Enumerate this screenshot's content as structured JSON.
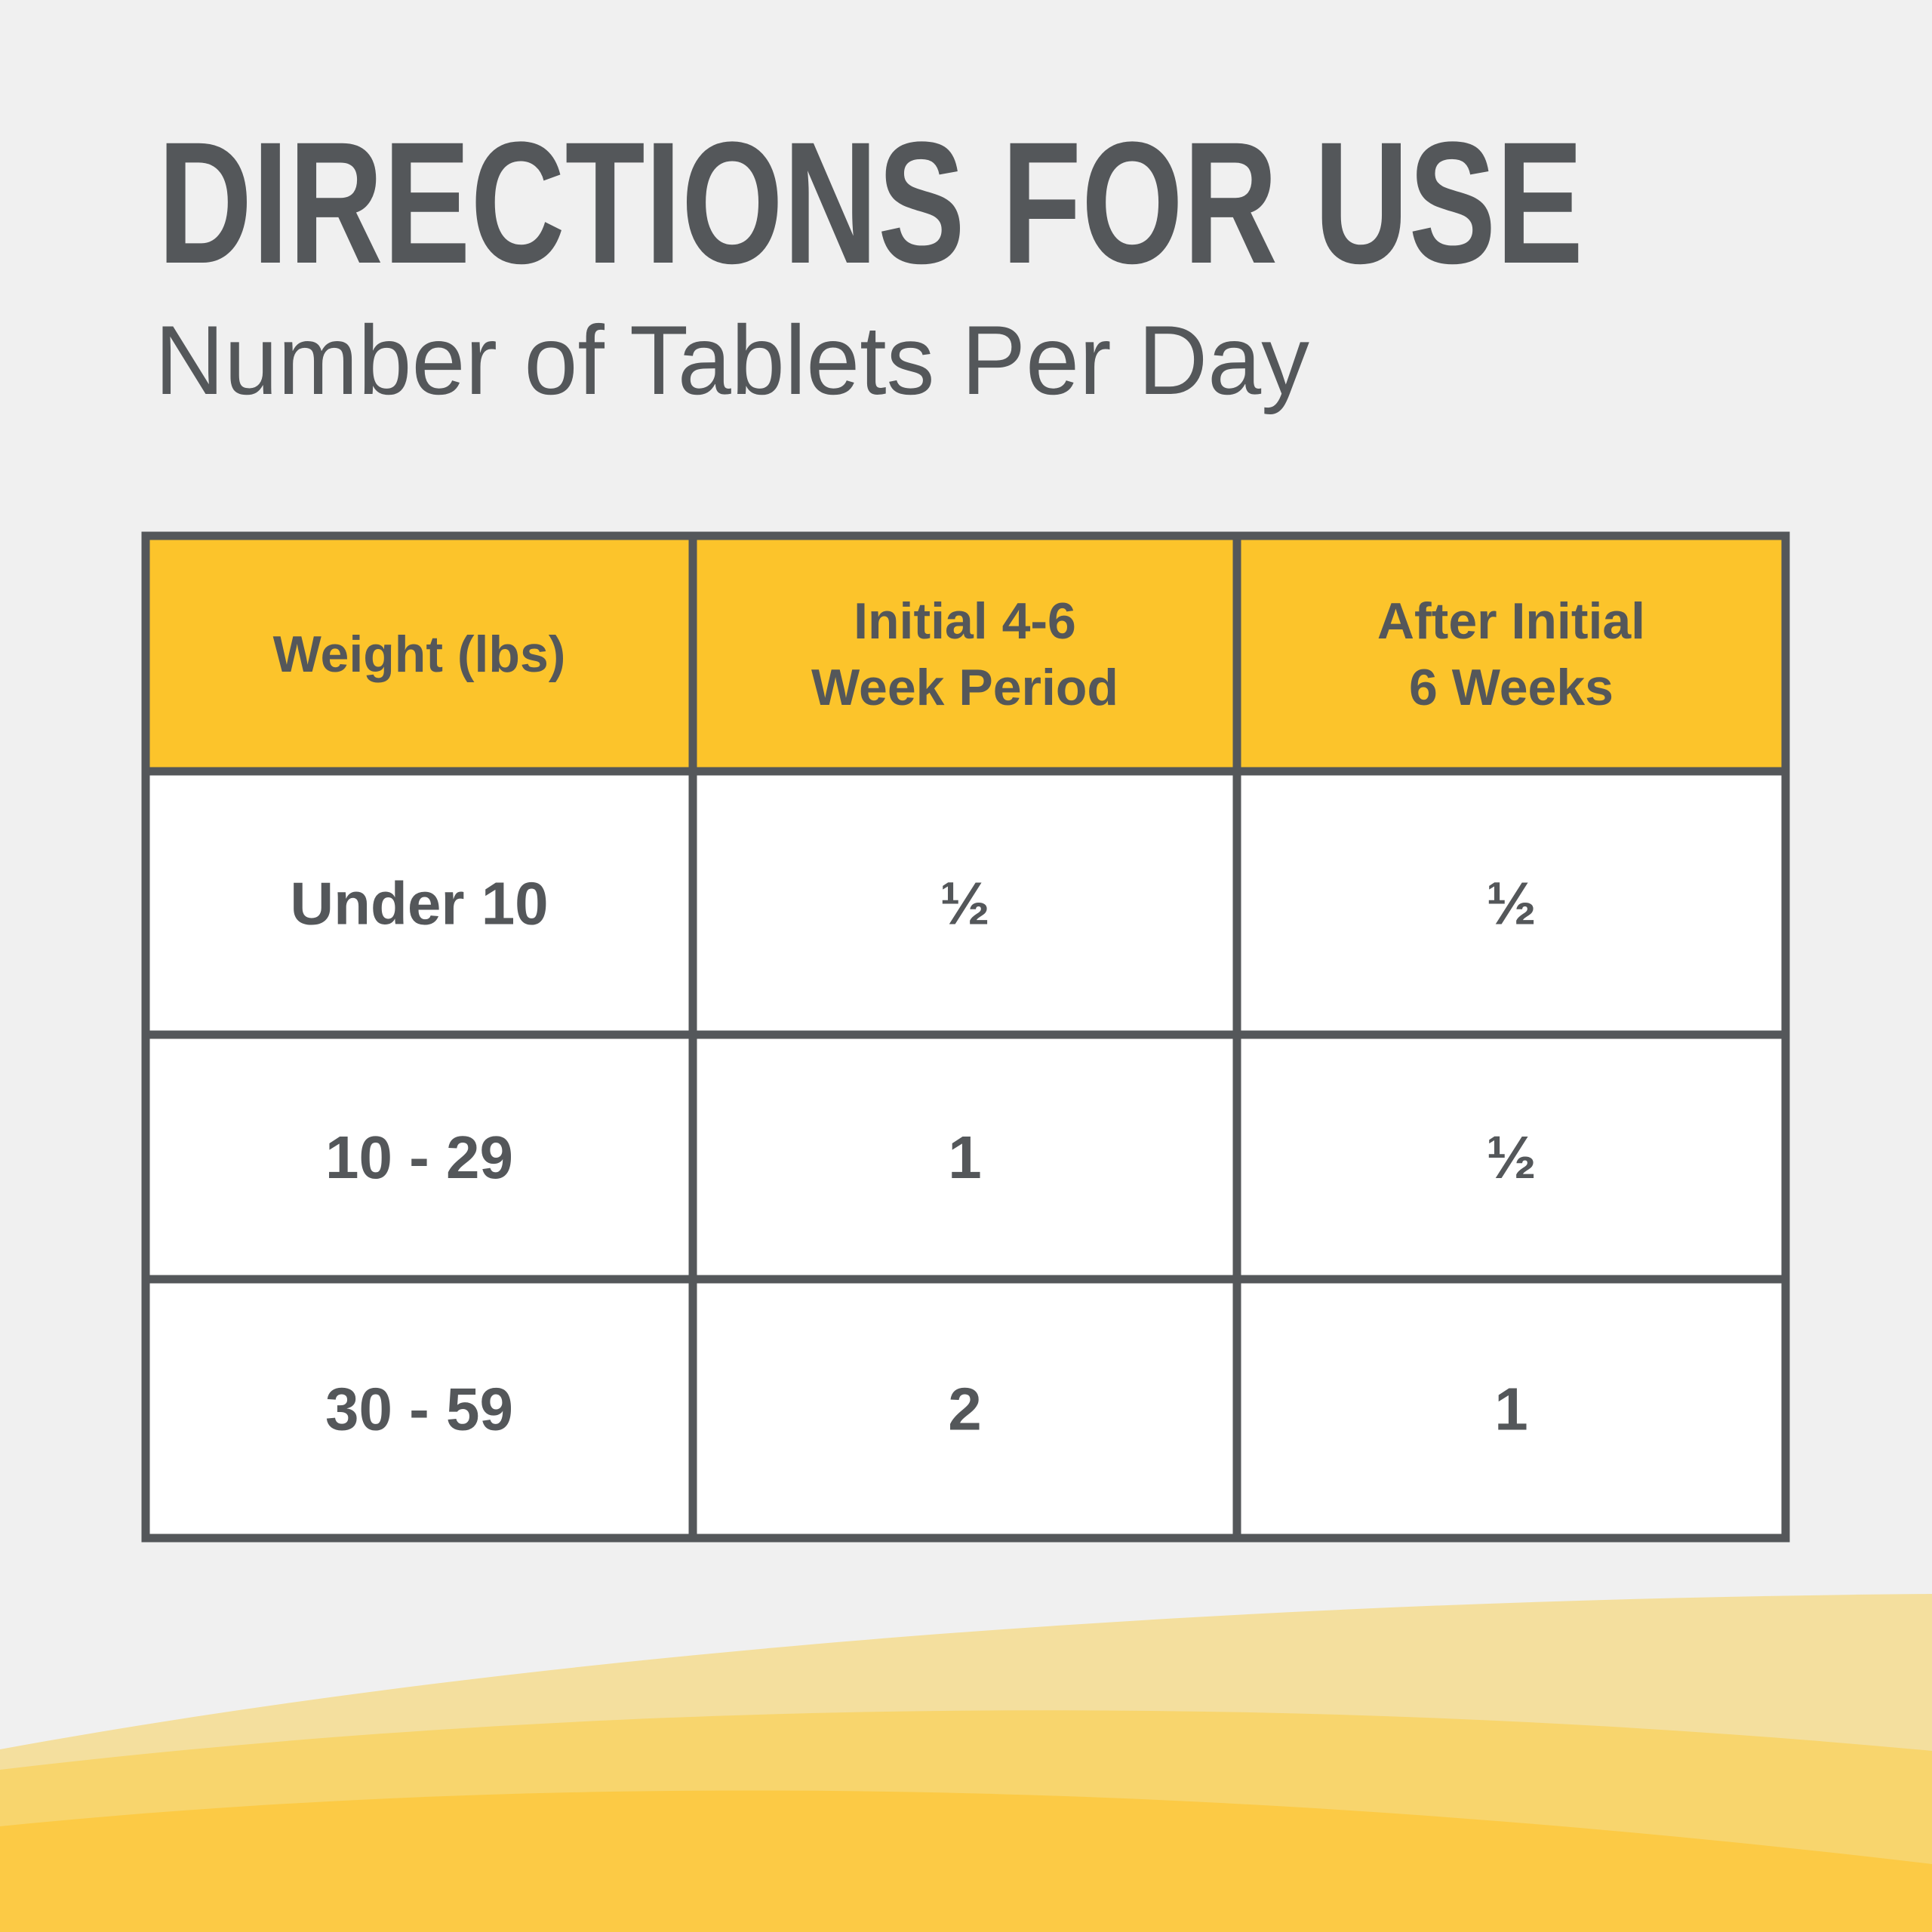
{
  "header": {
    "title": "DIRECTIONS FOR USE",
    "subtitle": "Number of Tablets Per Day"
  },
  "table": {
    "columns": [
      [
        "Weight (lbs)"
      ],
      [
        "Initial 4-6",
        "Week Period"
      ],
      [
        "After Initial",
        "6 Weeks"
      ]
    ],
    "rows": [
      [
        "Under 10",
        "½",
        "½"
      ],
      [
        "10 - 29",
        "1",
        "½"
      ],
      [
        "30 - 59",
        "2",
        "1"
      ]
    ]
  }
}
